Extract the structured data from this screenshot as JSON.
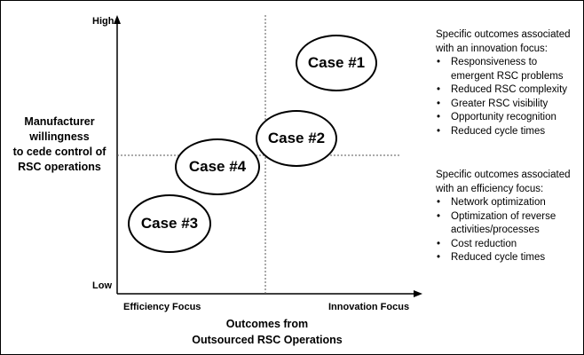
{
  "axes": {
    "y_high": "High",
    "y_low": "Low",
    "y_title_lines": [
      "Manufacturer",
      "willingness",
      "to cede control of",
      "RSC operations"
    ],
    "x_left": "Efficiency Focus",
    "x_right": "Innovation Focus",
    "x_title_lines": [
      "Outcomes from",
      "Outsourced RSC Operations"
    ]
  },
  "cases": [
    "Case #1",
    "Case #2",
    "Case #4",
    "Case #3"
  ],
  "innovation": {
    "heading_lines": [
      "Specific outcomes associated",
      "with an innovation focus:"
    ],
    "items": [
      [
        "Responsiveness to",
        "emergent RSC problems"
      ],
      [
        "Reduced RSC complexity"
      ],
      [
        "Greater RSC visibility"
      ],
      [
        "Opportunity recognition"
      ],
      [
        "Reduced cycle times"
      ]
    ]
  },
  "efficiency": {
    "heading_lines": [
      "Specific outcomes associated",
      "with an efficiency focus:"
    ],
    "items": [
      [
        "Network optimization"
      ],
      [
        "Optimization of reverse",
        "activities/processes"
      ],
      [
        "Cost reduction"
      ],
      [
        "Reduced cycle times"
      ]
    ]
  }
}
